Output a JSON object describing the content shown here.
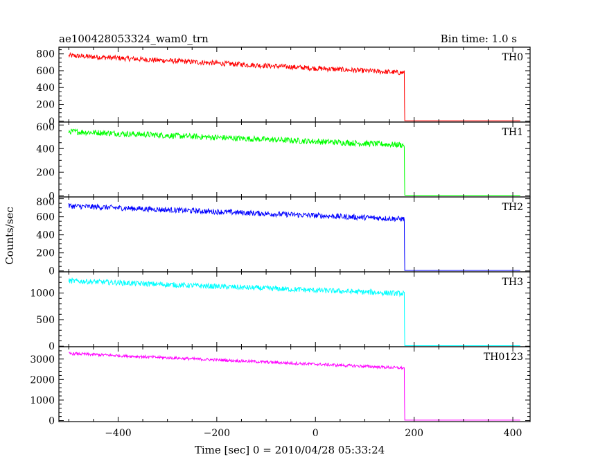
{
  "header": {
    "left_title": "ae100428053324_wam0_trn",
    "right_title": "Bin time: 1.0 s"
  },
  "chart_data": {
    "type": "line",
    "xlabel": "Time [sec] 0 = 2010/04/28 05:33:24",
    "ylabel": "Counts/sec",
    "xlim": [
      -520,
      435
    ],
    "x_ticks": [
      -400,
      -200,
      0,
      200,
      400
    ],
    "x_tick_labels": [
      "−400",
      "−200",
      "0",
      "200",
      "400"
    ],
    "x_minor_step": 50,
    "time_range": [
      -500,
      415
    ],
    "drop_time": 180,
    "bin_time": 1.0,
    "panels": [
      {
        "name": "TH0",
        "color": "#ff0000",
        "ylim": [
          -10,
          880
        ],
        "y_ticks": [
          0,
          200,
          400,
          600,
          800
        ],
        "y_minor_step": 50,
        "level_start": 780,
        "level_end": 575,
        "noise_amplitude": 30,
        "level_after": 5
      },
      {
        "name": "TH1",
        "color": "#00ff00",
        "ylim": [
          -10,
          625
        ],
        "y_ticks": [
          0,
          200,
          400,
          600
        ],
        "y_minor_step": 50,
        "level_start": 545,
        "level_end": 430,
        "noise_amplitude": 25,
        "level_after": 5
      },
      {
        "name": "TH2",
        "color": "#0000ff",
        "ylim": [
          -10,
          820
        ],
        "y_ticks": [
          0,
          200,
          400,
          600,
          800
        ],
        "y_minor_step": 50,
        "level_start": 720,
        "level_end": 575,
        "noise_amplitude": 30,
        "level_after": 5
      },
      {
        "name": "TH3",
        "color": "#00ffff",
        "ylim": [
          -10,
          1400
        ],
        "y_ticks": [
          0,
          500,
          1000
        ],
        "y_minor_step": 100,
        "level_start": 1230,
        "level_end": 990,
        "noise_amplitude": 50,
        "level_after": 10
      },
      {
        "name": "TH0123",
        "color": "#ff00ff",
        "ylim": [
          -50,
          3600
        ],
        "y_ticks": [
          0,
          1000,
          2000,
          3000
        ],
        "y_minor_step": 200,
        "level_start": 3270,
        "level_end": 2560,
        "noise_amplitude": 70,
        "level_after": 20
      }
    ]
  }
}
